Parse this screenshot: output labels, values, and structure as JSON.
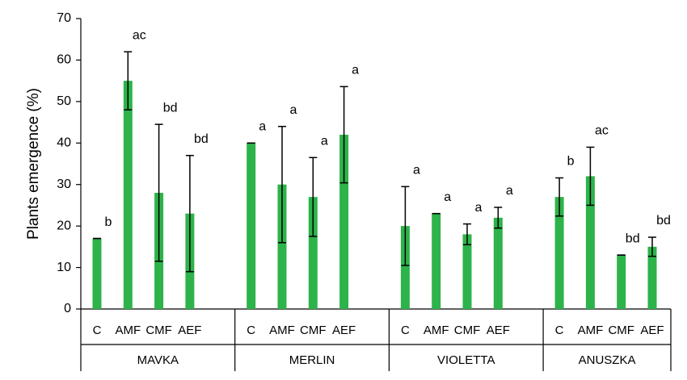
{
  "chart_data": {
    "type": "bar",
    "ylabel": "Plants emergence (%)",
    "ylim": [
      0,
      70
    ],
    "yticks": [
      0,
      10,
      20,
      30,
      40,
      50,
      60,
      70
    ],
    "color": "#2db34a",
    "groups": [
      {
        "name": "MAVKA",
        "categories": [
          "C",
          "AMF",
          "CMF",
          "AEF"
        ],
        "values": [
          17,
          55,
          28,
          23
        ],
        "errors": [
          0,
          7,
          16.5,
          14
        ],
        "annotations": [
          "b",
          "ac",
          "bd",
          "bd"
        ]
      },
      {
        "name": "MERLIN",
        "categories": [
          "C",
          "AMF",
          "CMF",
          "AEF"
        ],
        "values": [
          40,
          30,
          27,
          42
        ],
        "errors": [
          0,
          14,
          9.5,
          11.6
        ],
        "annotations": [
          "a",
          "a",
          "a",
          "a"
        ]
      },
      {
        "name": "VIOLETTA",
        "categories": [
          "C",
          "AMF",
          "CMF",
          "AEF"
        ],
        "values": [
          20,
          23,
          18,
          22
        ],
        "errors": [
          9.5,
          0,
          2.5,
          2.5
        ],
        "annotations": [
          "a",
          "a",
          "a",
          "a"
        ]
      },
      {
        "name": "ANUSZKA",
        "categories": [
          "C",
          "AMF",
          "CMF",
          "AEF"
        ],
        "values": [
          27,
          32,
          13,
          15
        ],
        "errors": [
          4.6,
          7,
          0,
          2.3
        ],
        "annotations": [
          "b",
          "ac",
          "bd",
          "bd"
        ]
      }
    ]
  }
}
